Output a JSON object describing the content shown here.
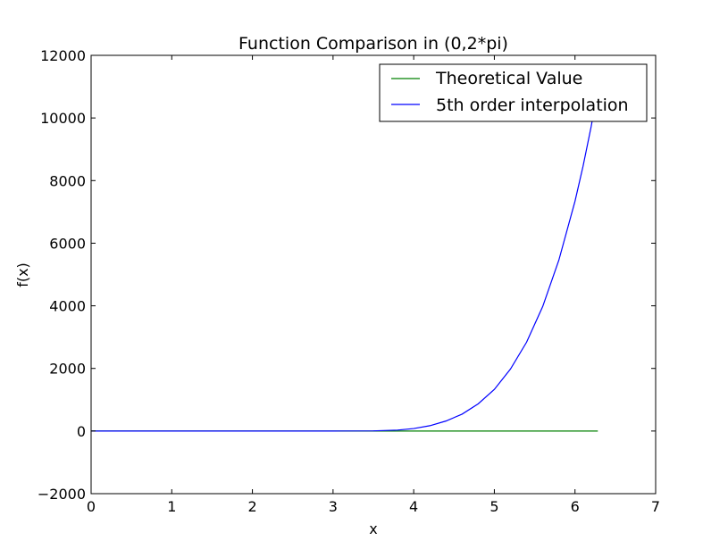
{
  "chart_data": {
    "type": "line",
    "title": "Function Comparison in (0,2*pi)",
    "xlabel": "x",
    "ylabel": "f(x)",
    "xlim": [
      0,
      7
    ],
    "ylim": [
      -2000,
      12000
    ],
    "xticks": [
      0,
      1,
      2,
      3,
      4,
      5,
      6,
      7
    ],
    "xtick_labels": [
      "0",
      "1",
      "2",
      "3",
      "4",
      "5",
      "6",
      "7"
    ],
    "yticks": [
      -2000,
      0,
      2000,
      4000,
      6000,
      8000,
      10000,
      12000
    ],
    "ytick_labels": [
      "−2000",
      "0",
      "2000",
      "4000",
      "6000",
      "8000",
      "10000",
      "12000"
    ],
    "grid": false,
    "legend_position": "top-right",
    "series": [
      {
        "name": "Theoretical Value",
        "color": "#008000",
        "x": [
          0,
          6.283
        ],
        "y": [
          0,
          0
        ]
      },
      {
        "name": "5th order interpolation",
        "color": "#0000ff",
        "x": [
          0,
          1,
          2,
          3,
          3.5,
          3.8,
          4.0,
          4.2,
          4.4,
          4.6,
          4.8,
          5.0,
          5.2,
          5.4,
          5.6,
          5.8,
          6.0,
          6.1,
          6.2,
          6.283
        ],
        "y": [
          0,
          0,
          0,
          0,
          5,
          30,
          80,
          170,
          320,
          540,
          870,
          1330,
          1980,
          2840,
          3980,
          5460,
          7340,
          8460,
          9720,
          10900
        ]
      }
    ]
  }
}
